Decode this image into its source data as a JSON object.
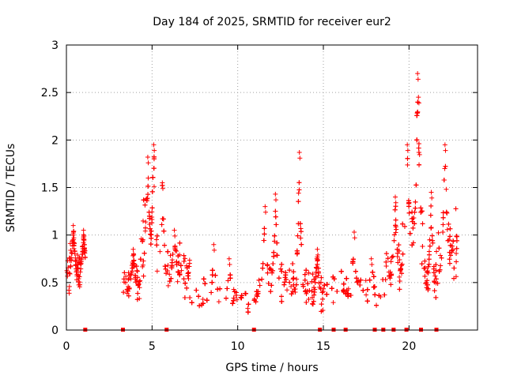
{
  "chart_data": {
    "type": "scatter",
    "title": "Day 184 of 2025, SRMTID for receiver eur2",
    "xlabel": "GPS time / hours",
    "ylabel": "SRMTID / TECUs",
    "xlim": [
      0,
      24
    ],
    "ylim": [
      0,
      3
    ],
    "xticks": [
      0,
      5,
      10,
      15,
      20
    ],
    "yticks": [
      0,
      0.5,
      1,
      1.5,
      2,
      2.5,
      3
    ],
    "ytick_labels": [
      "0",
      "0.5",
      "1",
      "1.5",
      "2",
      "2.5",
      "3"
    ],
    "grid": true,
    "marker": "+",
    "series_color": "#ff0000",
    "axis_color": "#000000",
    "grid_color": "#a0a0a0",
    "clusters": [
      {
        "x0": 0.0,
        "x1": 1.1,
        "base": 0.6,
        "spread": 0.18,
        "n": 110,
        "peaks": [
          [
            0.4,
            1.1
          ],
          [
            1.0,
            1.05
          ]
        ]
      },
      {
        "x0": 3.3,
        "x1": 4.3,
        "base": 0.45,
        "spread": 0.15,
        "n": 90,
        "peaks": [
          [
            3.9,
            0.85
          ]
        ]
      },
      {
        "x0": 4.3,
        "x1": 5.3,
        "base": 0.85,
        "spread": 0.3,
        "n": 120,
        "peaks": [
          [
            4.75,
            1.82
          ],
          [
            5.1,
            1.95
          ]
        ]
      },
      {
        "x0": 5.3,
        "x1": 7.2,
        "base": 0.6,
        "spread": 0.22,
        "n": 170,
        "peaks": [
          [
            5.6,
            1.55
          ],
          [
            6.3,
            1.05
          ]
        ]
      },
      {
        "x0": 7.2,
        "x1": 11.2,
        "base": 0.33,
        "spread": 0.12,
        "n": 320,
        "peaks": [
          [
            8.6,
            0.9
          ],
          [
            9.5,
            0.75
          ]
        ]
      },
      {
        "x0": 11.2,
        "x1": 12.8,
        "base": 0.5,
        "spread": 0.17,
        "n": 130,
        "peaks": [
          [
            11.6,
            1.3
          ],
          [
            12.2,
            1.43
          ]
        ]
      },
      {
        "x0": 12.8,
        "x1": 14.2,
        "base": 0.45,
        "spread": 0.16,
        "n": 120,
        "peaks": [
          [
            13.6,
            1.87
          ]
        ]
      },
      {
        "x0": 14.2,
        "x1": 15.0,
        "base": 0.35,
        "spread": 0.18,
        "n": 80,
        "peaks": [
          [
            14.65,
            0.85
          ]
        ]
      },
      {
        "x0": 15.0,
        "x1": 18.6,
        "base": 0.4,
        "spread": 0.14,
        "n": 300,
        "peaks": [
          [
            16.8,
            1.03
          ],
          [
            17.8,
            0.75
          ]
        ]
      },
      {
        "x0": 18.6,
        "x1": 19.6,
        "base": 0.6,
        "spread": 0.2,
        "n": 90,
        "peaks": [
          [
            19.2,
            1.4
          ]
        ]
      },
      {
        "x0": 19.6,
        "x1": 20.8,
        "base": 0.95,
        "spread": 0.32,
        "n": 130,
        "peaks": [
          [
            19.9,
            1.95
          ],
          [
            20.5,
            2.7
          ],
          [
            20.55,
            2.45
          ]
        ]
      },
      {
        "x0": 20.8,
        "x1": 21.6,
        "base": 0.5,
        "spread": 0.2,
        "n": 80,
        "peaks": [
          [
            21.3,
            1.45
          ]
        ]
      },
      {
        "x0": 21.6,
        "x1": 22.8,
        "base": 0.8,
        "spread": 0.3,
        "n": 110,
        "peaks": [
          [
            22.1,
            1.95
          ]
        ]
      }
    ],
    "zero_markers_x": [
      1.1,
      3.3,
      5.85,
      10.95,
      14.8,
      15.6,
      16.3,
      18.0,
      18.5,
      19.1,
      19.85,
      20.7,
      21.6
    ]
  }
}
